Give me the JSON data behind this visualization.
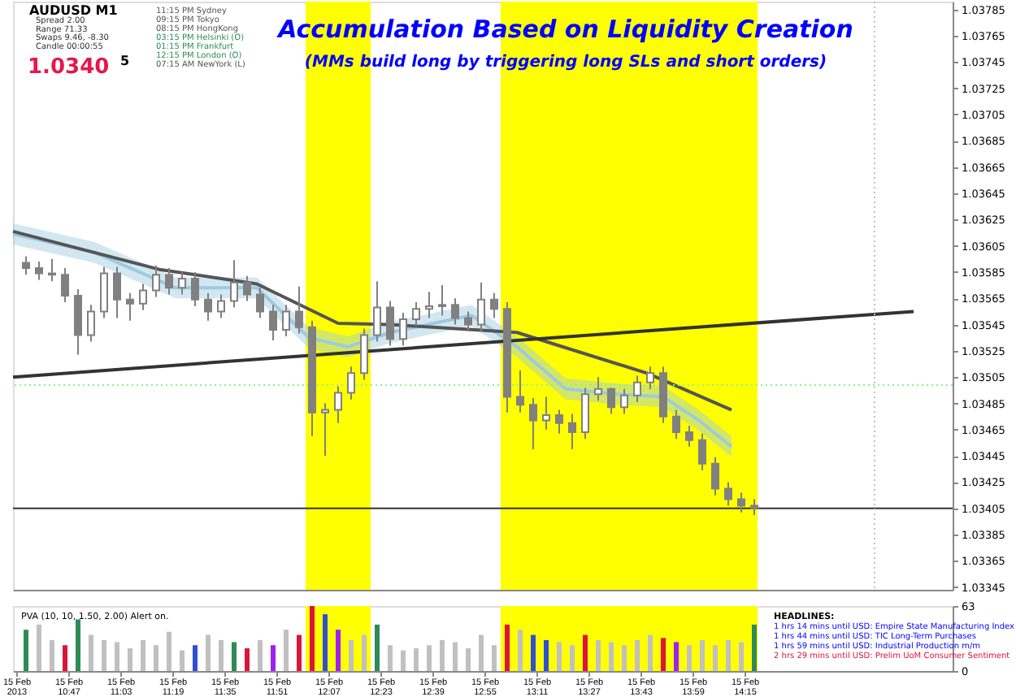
{
  "chart_data": [
    {
      "type": "candlestick",
      "title": "Accumulation Based on Liquidity Creation",
      "subtitle": "(MMs build long by triggering long SLs and short orders)",
      "color": "#808080",
      "x": [
        "2013-02-15T10:34",
        "2013-02-15T10:38",
        "2013-02-15T10:42",
        "2013-02-15T10:46",
        "2013-02-15T10:50",
        "2013-02-15T10:54",
        "2013-02-15T10:58",
        "2013-02-15T11:02",
        "2013-02-15T11:06",
        "2013-02-15T11:10",
        "2013-02-15T11:14",
        "2013-02-15T11:18",
        "2013-02-15T11:22",
        "2013-02-15T11:26",
        "2013-02-15T11:30",
        "2013-02-15T11:34",
        "2013-02-15T11:38",
        "2013-02-15T11:42",
        "2013-02-15T11:46",
        "2013-02-15T11:50",
        "2013-02-15T11:54",
        "2013-02-15T11:58",
        "2013-02-15T12:02",
        "2013-02-15T12:06",
        "2013-02-15T12:10",
        "2013-02-15T12:14",
        "2013-02-15T12:18",
        "2013-02-15T12:22",
        "2013-02-15T12:26",
        "2013-02-15T12:30",
        "2013-02-15T12:34",
        "2013-02-15T12:38",
        "2013-02-15T12:42",
        "2013-02-15T12:46",
        "2013-02-15T12:50",
        "2013-02-15T12:54",
        "2013-02-15T12:58",
        "2013-02-15T13:02",
        "2013-02-15T13:06",
        "2013-02-15T13:10",
        "2013-02-15T13:14",
        "2013-02-15T13:18",
        "2013-02-15T13:22",
        "2013-02-15T13:26",
        "2013-02-15T13:30",
        "2013-02-15T13:34",
        "2013-02-15T13:38",
        "2013-02-15T13:42",
        "2013-02-15T13:46",
        "2013-02-15T13:50",
        "2013-02-15T13:54",
        "2013-02-15T13:58",
        "2013-02-15T14:02",
        "2013-02-15T14:06",
        "2013-02-15T14:10",
        "2013-02-15T14:14",
        "2013-02-15T14:18"
      ],
      "ohlc": [
        [
          1.03592,
          1.03597,
          1.03583,
          1.03588
        ],
        [
          1.03588,
          1.03593,
          1.03579,
          1.03584
        ],
        [
          1.03584,
          1.03595,
          1.03578,
          1.03583
        ],
        [
          1.03583,
          1.03588,
          1.03562,
          1.03567
        ],
        [
          1.03567,
          1.03572,
          1.03522,
          1.03537
        ],
        [
          1.03537,
          1.0356,
          1.03532,
          1.03555
        ],
        [
          1.03555,
          1.03589,
          1.0355,
          1.03584
        ],
        [
          1.03584,
          1.03589,
          1.0355,
          1.03564
        ],
        [
          1.03564,
          1.03569,
          1.03548,
          1.03561
        ],
        [
          1.03561,
          1.03576,
          1.03556,
          1.03571
        ],
        [
          1.03571,
          1.0359,
          1.03566,
          1.03583
        ],
        [
          1.03583,
          1.03588,
          1.03568,
          1.03573
        ],
        [
          1.03573,
          1.03585,
          1.03568,
          1.0358
        ],
        [
          1.0358,
          1.03585,
          1.03559,
          1.03564
        ],
        [
          1.03564,
          1.03569,
          1.03548,
          1.03555
        ],
        [
          1.03555,
          1.03568,
          1.0355,
          1.03563
        ],
        [
          1.03563,
          1.03594,
          1.03558,
          1.03577
        ],
        [
          1.03577,
          1.03582,
          1.03563,
          1.03568
        ],
        [
          1.03568,
          1.03573,
          1.0355,
          1.03555
        ],
        [
          1.03555,
          1.0356,
          1.03533,
          1.03541
        ],
        [
          1.03541,
          1.0356,
          1.03536,
          1.03555
        ],
        [
          1.03555,
          1.03574,
          1.03538,
          1.03543
        ],
        [
          1.03543,
          1.03548,
          1.0346,
          1.03478
        ],
        [
          1.03478,
          1.03485,
          1.03445,
          1.0348
        ],
        [
          1.0348,
          1.03498,
          1.0347,
          1.03493
        ],
        [
          1.03493,
          1.03513,
          1.03488,
          1.03508
        ],
        [
          1.03508,
          1.03542,
          1.03503,
          1.03537
        ],
        [
          1.03537,
          1.03578,
          1.03532,
          1.03558
        ],
        [
          1.03558,
          1.03563,
          1.03529,
          1.03534
        ],
        [
          1.03534,
          1.03554,
          1.03529,
          1.03549
        ],
        [
          1.03549,
          1.03562,
          1.03544,
          1.03557
        ],
        [
          1.03557,
          1.0357,
          1.0355,
          1.03559
        ],
        [
          1.03559,
          1.03575,
          1.03552,
          1.0356
        ],
        [
          1.0356,
          1.03565,
          1.03545,
          1.0355
        ],
        [
          1.0355,
          1.03555,
          1.0354,
          1.03545
        ],
        [
          1.03545,
          1.03577,
          1.0354,
          1.03564
        ],
        [
          1.03564,
          1.03569,
          1.0355,
          1.03557
        ],
        [
          1.03557,
          1.03562,
          1.03478,
          1.0349
        ],
        [
          1.0349,
          1.0351,
          1.03478,
          1.03484
        ],
        [
          1.03484,
          1.03489,
          1.0345,
          1.03472
        ],
        [
          1.03472,
          1.0349,
          1.03465,
          1.03476
        ],
        [
          1.03476,
          1.0348,
          1.03462,
          1.0347
        ],
        [
          1.0347,
          1.03477,
          1.0345,
          1.03463
        ],
        [
          1.03463,
          1.03497,
          1.03458,
          1.03492
        ],
        [
          1.03492,
          1.03505,
          1.03487,
          1.03496
        ],
        [
          1.03496,
          1.03497,
          1.03477,
          1.03482
        ],
        [
          1.03482,
          1.03496,
          1.03477,
          1.03491
        ],
        [
          1.03491,
          1.03506,
          1.03486,
          1.03501
        ],
        [
          1.03501,
          1.03513,
          1.03496,
          1.03508
        ],
        [
          1.03508,
          1.03513,
          1.0347,
          1.03475
        ],
        [
          1.03475,
          1.0348,
          1.03458,
          1.03463
        ],
        [
          1.03463,
          1.03468,
          1.03452,
          1.03457
        ],
        [
          1.03457,
          1.03462,
          1.03434,
          1.03439
        ],
        [
          1.03439,
          1.03444,
          1.03415,
          1.0342
        ],
        [
          1.0342,
          1.03425,
          1.03407,
          1.03412
        ],
        [
          1.03412,
          1.03417,
          1.03402,
          1.03407
        ],
        [
          1.03407,
          1.03412,
          1.034,
          1.03405
        ]
      ],
      "series": [
        {
          "type": "line",
          "color": "#9ecae1",
          "x": [
            "2013-02-15T10:30",
            "2013-02-15T10:55",
            "2013-02-15T11:20",
            "2013-02-15T11:45",
            "2013-02-15T12:01",
            "2013-02-15T12:13",
            "2013-02-15T12:26",
            "2013-02-15T12:51",
            "2013-02-15T13:05",
            "2013-02-15T13:20",
            "2013-02-15T13:36",
            "2013-02-15T13:50",
            "2013-02-15T14:01",
            "2013-02-15T14:11"
          ],
          "values": [
            1.03614,
            1.036,
            1.03573,
            1.03573,
            1.03535,
            1.03528,
            1.03539,
            1.03552,
            1.03528,
            1.03496,
            1.03492,
            1.0349,
            1.03472,
            1.03452
          ],
          "lower": [
            1.03606,
            1.03592,
            1.03565,
            1.03565,
            1.03527,
            1.0352,
            1.03531,
            1.03544,
            1.0352,
            1.03488,
            1.03484,
            1.03482,
            1.03464,
            1.03444
          ],
          "upper": [
            1.03622,
            1.03608,
            1.03581,
            1.03581,
            1.03543,
            1.03536,
            1.03547,
            1.0356,
            1.03536,
            1.03504,
            1.035,
            1.03498,
            1.0348,
            1.0346
          ]
        },
        {
          "type": "line",
          "color": "#555555",
          "x": [
            "2013-02-15T10:30",
            "2013-02-15T11:15",
            "2013-02-15T11:45",
            "2013-02-15T12:10",
            "2013-02-15T12:26",
            "2013-02-15T13:05",
            "2013-02-15T13:45",
            "2013-02-15T14:11"
          ],
          "values": [
            1.03616,
            1.03587,
            1.03576,
            1.03546,
            1.03545,
            1.03539,
            1.03508,
            1.0348
          ]
        },
        {
          "type": "line",
          "color": "#333333",
          "x": [
            "2013-02-15T10:30",
            "2013-02-15T15:07"
          ],
          "values": [
            1.03505,
            1.03555
          ]
        }
      ],
      "xlim": [
        "2013-02-15T10:30",
        "2013-02-15T15:19"
      ],
      "ylim": [
        1.03343,
        1.03791
      ],
      "yticks": [
        1.03785,
        1.03765,
        1.03745,
        1.03725,
        1.03705,
        1.03685,
        1.03665,
        1.03645,
        1.03625,
        1.03605,
        1.03585,
        1.03565,
        1.03545,
        1.03525,
        1.03505,
        1.03485,
        1.03465,
        1.03445,
        1.03425,
        1.03405,
        1.03385,
        1.03365,
        1.03345
      ],
      "tick_labels": "y",
      "grid": false,
      "legend": false,
      "ref_lines": [
        {
          "axis": "y",
          "value": 1.03405,
          "color": "#333333"
        },
        {
          "axis": "y",
          "value": 1.03499,
          "color": "#90ee90",
          "line_style": "dotted"
        },
        {
          "axis": "x",
          "value": "2013-02-15T14:55",
          "color": "#c0c0c0",
          "line_style": "dotted"
        }
      ],
      "bands": [
        {
          "axis": "x",
          "from": "2013-02-15T12:00",
          "to": "2013-02-15T12:20",
          "color": "#ffff00"
        },
        {
          "axis": "x",
          "from": "2013-02-15T13:00",
          "to": "2013-02-15T14:19",
          "color": "#ffff00"
        }
      ],
      "annotations": [
        "AUDUSD  M1",
        "Spread  2.00",
        "Range  71.33",
        "Swaps  9.46, -8.30",
        "Candle  00:00:55",
        "1.0340",
        "5",
        "11:15 PM  Sydney",
        "09:15 PM  Tokyo",
        "08:15 PM  HongKong",
        "03:15 PM  Helsinki (O)",
        "01:15 PM  Frankfurt",
        "12:15 PM  London (O)",
        "07:15 AM  NewYork (L)"
      ]
    },
    {
      "type": "bar",
      "x": [
        "2013-02-15T10:34",
        "2013-02-15T10:38",
        "2013-02-15T10:42",
        "2013-02-15T10:46",
        "2013-02-15T10:50",
        "2013-02-15T10:54",
        "2013-02-15T10:58",
        "2013-02-15T11:02",
        "2013-02-15T11:06",
        "2013-02-15T11:10",
        "2013-02-15T11:14",
        "2013-02-15T11:18",
        "2013-02-15T11:22",
        "2013-02-15T11:26",
        "2013-02-15T11:30",
        "2013-02-15T11:34",
        "2013-02-15T11:38",
        "2013-02-15T11:42",
        "2013-02-15T11:46",
        "2013-02-15T11:50",
        "2013-02-15T11:54",
        "2013-02-15T11:58",
        "2013-02-15T12:02",
        "2013-02-15T12:06",
        "2013-02-15T12:10",
        "2013-02-15T12:14",
        "2013-02-15T12:18",
        "2013-02-15T12:22",
        "2013-02-15T12:26",
        "2013-02-15T12:30",
        "2013-02-15T12:34",
        "2013-02-15T12:38",
        "2013-02-15T12:42",
        "2013-02-15T12:46",
        "2013-02-15T12:50",
        "2013-02-15T12:54",
        "2013-02-15T12:58",
        "2013-02-15T13:02",
        "2013-02-15T13:06",
        "2013-02-15T13:10",
        "2013-02-15T13:14",
        "2013-02-15T13:18",
        "2013-02-15T13:22",
        "2013-02-15T13:26",
        "2013-02-15T13:30",
        "2013-02-15T13:34",
        "2013-02-15T13:38",
        "2013-02-15T13:42",
        "2013-02-15T13:46",
        "2013-02-15T13:50",
        "2013-02-15T13:54",
        "2013-02-15T13:58",
        "2013-02-15T14:02",
        "2013-02-15T14:06",
        "2013-02-15T14:10",
        "2013-02-15T14:14",
        "2013-02-15T14:18"
      ],
      "values": [
        40,
        45,
        30,
        25,
        50,
        35,
        30,
        28,
        22,
        30,
        25,
        38,
        20,
        25,
        35,
        30,
        28,
        22,
        30,
        25,
        40,
        35,
        63,
        55,
        40,
        30,
        35,
        45,
        25,
        20,
        22,
        25,
        30,
        28,
        22,
        35,
        25,
        45,
        40,
        35,
        30,
        28,
        25,
        35,
        30,
        28,
        25,
        30,
        35,
        32,
        28,
        25,
        30,
        25,
        30,
        28,
        45
      ],
      "colors": [
        "#2e8b57",
        "#c0c0c0",
        "#c0c0c0",
        "#dc143c",
        "#2e8b57",
        "#c0c0c0",
        "#c0c0c0",
        "#c0c0c0",
        "#c0c0c0",
        "#c0c0c0",
        "#c0c0c0",
        "#c0c0c0",
        "#c0c0c0",
        "#3050d0",
        "#c0c0c0",
        "#c0c0c0",
        "#2e8b57",
        "#dc143c",
        "#c0c0c0",
        "#a020f0",
        "#c0c0c0",
        "#dc143c",
        "#dc143c",
        "#3050d0",
        "#a020f0",
        "#c0c0c0",
        "#c0c0c0",
        "#2e8b57",
        "#c0c0c0",
        "#c0c0c0",
        "#c0c0c0",
        "#c0c0c0",
        "#c0c0c0",
        "#c0c0c0",
        "#c0c0c0",
        "#c0c0c0",
        "#c0c0c0",
        "#dc143c",
        "#c0c0c0",
        "#3050d0",
        "#3050d0",
        "#c0c0c0",
        "#c0c0c0",
        "#dc143c",
        "#c0c0c0",
        "#c0c0c0",
        "#c0c0c0",
        "#c0c0c0",
        "#c0c0c0",
        "#dc143c",
        "#a020f0",
        "#c0c0c0",
        "#c0c0c0",
        "#c0c0c0",
        "#c0c0c0",
        "#c0c0c0",
        "#2e8b57"
      ],
      "xlim": [
        "2013-02-15T10:30",
        "2013-02-15T15:19"
      ],
      "xticks": [
        {
          "value": "2013-02-15T10:31",
          "label": "15 Feb 2013"
        },
        {
          "value": "2013-02-15T10:47",
          "label": "15 Feb 10:47"
        },
        {
          "value": "2013-02-15T11:03",
          "label": "15 Feb 11:03"
        },
        {
          "value": "2013-02-15T11:19",
          "label": "15 Feb 11:19"
        },
        {
          "value": "2013-02-15T11:35",
          "label": "15 Feb 11:35"
        },
        {
          "value": "2013-02-15T11:51",
          "label": "15 Feb 11:51"
        },
        {
          "value": "2013-02-15T12:07",
          "label": "15 Feb 12:07"
        },
        {
          "value": "2013-02-15T12:23",
          "label": "15 Feb 12:23"
        },
        {
          "value": "2013-02-15T12:39",
          "label": "15 Feb 12:39"
        },
        {
          "value": "2013-02-15T12:55",
          "label": "15 Feb 12:55"
        },
        {
          "value": "2013-02-15T13:11",
          "label": "15 Feb 13:11"
        },
        {
          "value": "2013-02-15T13:27",
          "label": "15 Feb 13:27"
        },
        {
          "value": "2013-02-15T13:43",
          "label": "15 Feb 13:43"
        },
        {
          "value": "2013-02-15T13:59",
          "label": "15 Feb 13:59"
        },
        {
          "value": "2013-02-15T14:15",
          "label": "15 Feb 14:15"
        }
      ],
      "ylim": [
        0,
        63
      ],
      "yticks": [
        63,
        0
      ],
      "grid": false,
      "legend": false,
      "bands": [
        {
          "axis": "x",
          "from": "2013-02-15T12:00",
          "to": "2013-02-15T12:20",
          "color": "#ffff00"
        },
        {
          "axis": "x",
          "from": "2013-02-15T13:00",
          "to": "2013-02-15T14:19",
          "color": "#ffff00"
        }
      ],
      "annotations": [
        "PVA (10, 10, 1.50, 2.00)   Alert on.",
        "HEADLINES:",
        "1 hrs 14 mins until USD: Empire State Manufacturing Index",
        "1 hrs 44 mins until USD: TIC Long-Term Purchases",
        "1 hrs 59 mins until USD: Industrial Production m/m",
        "2 hrs 29 mins until USD: Prelim UoM Consumer Sentiment"
      ]
    }
  ]
}
